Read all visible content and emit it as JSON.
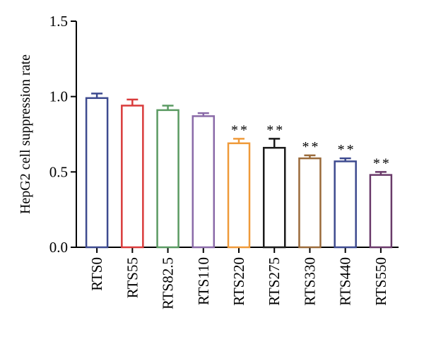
{
  "chart_data": {
    "type": "bar",
    "ylabel": "HepG2 cell suppression rate",
    "xlabel": "",
    "ylim": [
      0,
      1.5
    ],
    "yticks": [
      0.0,
      0.5,
      1.0,
      1.5
    ],
    "ytick_labels": [
      "0.0",
      "0.5",
      "1.0",
      "1.5"
    ],
    "grid": false,
    "categories": [
      "RTS0",
      "RTS55",
      "RTS82.5",
      "RTS110",
      "RTS220",
      "RTS275",
      "RTS330",
      "RTS440",
      "RTS550"
    ],
    "values": [
      0.99,
      0.94,
      0.91,
      0.87,
      0.69,
      0.66,
      0.59,
      0.57,
      0.48
    ],
    "errors": [
      0.03,
      0.04,
      0.03,
      0.02,
      0.03,
      0.06,
      0.02,
      0.02,
      0.02
    ],
    "significance": [
      "",
      "",
      "",
      "",
      "**",
      "**",
      "**",
      "**",
      "**"
    ],
    "colors": [
      "#3d4a8f",
      "#d93b3b",
      "#5a9a62",
      "#8a6aa8",
      "#ef9a3a",
      "#1a1a1a",
      "#9a6a3a",
      "#3d4a8f",
      "#6a3a6a"
    ]
  }
}
